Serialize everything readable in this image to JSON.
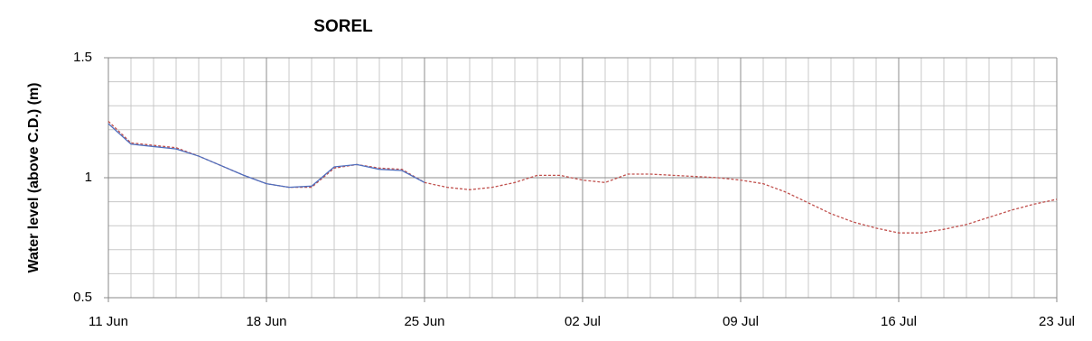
{
  "chart_data": {
    "type": "line",
    "title": "SOREL",
    "y_label": "Water level (above C.D.) (m)",
    "categories": [
      "11 Jun",
      null,
      null,
      null,
      null,
      null,
      null,
      "18 Jun",
      null,
      null,
      null,
      null,
      null,
      null,
      "25 Jun",
      null,
      null,
      null,
      null,
      null,
      null,
      "02 Jul",
      null,
      null,
      null,
      null,
      null,
      null,
      "09 Jul",
      null,
      null,
      null,
      null,
      null,
      null,
      "16 Jul",
      null,
      null,
      null,
      null,
      null,
      null,
      "23 Jul"
    ],
    "series": [
      {
        "color": "#c0504d",
        "dashed": true,
        "values": [
          1.235,
          1.145,
          1.135,
          1.125,
          1.09,
          1.05,
          1.01,
          0.975,
          0.96,
          0.96,
          1.04,
          1.055,
          1.04,
          1.035,
          0.98,
          0.96,
          0.95,
          0.96,
          0.98,
          1.01,
          1.01,
          0.99,
          0.98,
          1.015,
          1.015,
          1.01,
          1.005,
          1.0,
          0.99,
          0.975,
          0.94,
          0.895,
          0.85,
          0.815,
          0.79,
          0.77,
          0.77,
          0.785,
          0.805,
          0.835,
          0.865,
          0.89,
          0.91
        ]
      },
      {
        "color": "#4f6fbf",
        "dashed": false,
        "values": [
          1.225,
          1.14,
          1.13,
          1.12,
          1.09,
          1.05,
          1.01,
          0.975,
          0.96,
          0.965,
          1.045,
          1.055,
          1.035,
          1.03,
          0.98,
          null,
          null,
          null,
          null,
          null,
          null,
          null,
          null,
          null,
          null,
          null,
          null,
          null,
          null,
          null,
          null,
          null,
          null,
          null,
          null,
          null,
          null,
          null,
          null,
          null,
          null,
          null,
          null
        ]
      }
    ],
    "ylim": [
      0.5,
      1.5
    ],
    "yticks": [
      0.5,
      1,
      1.5
    ],
    "grid": true
  }
}
